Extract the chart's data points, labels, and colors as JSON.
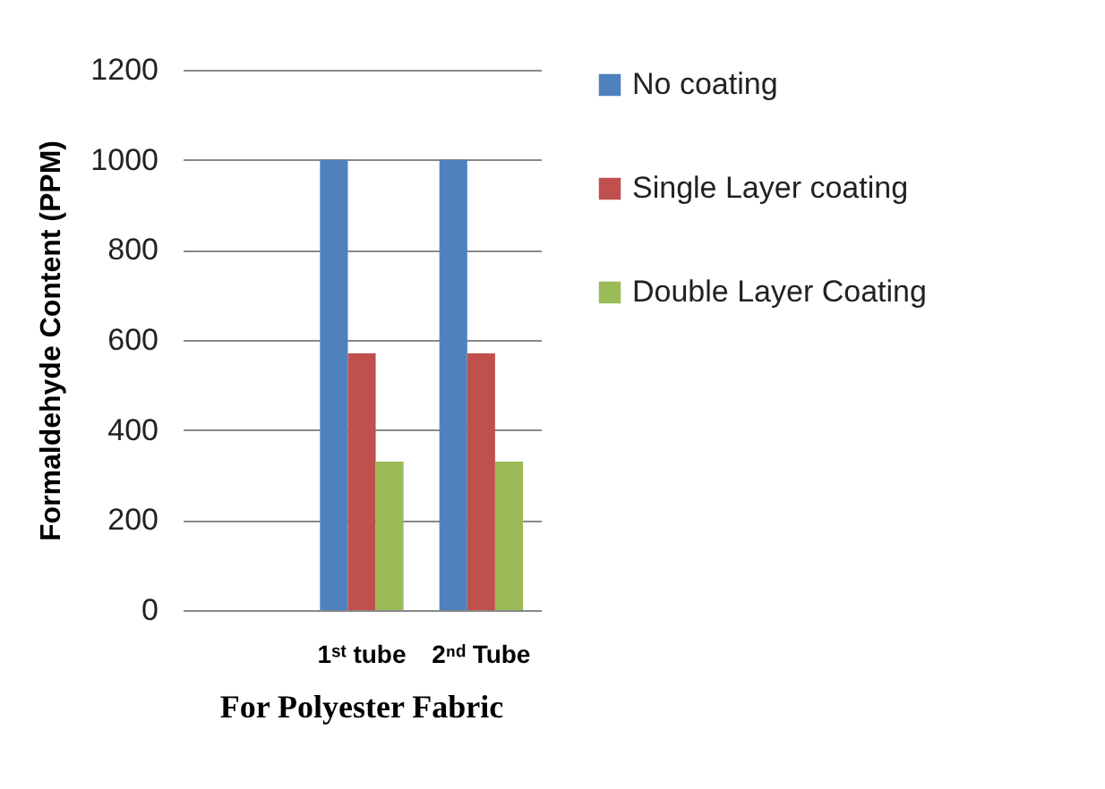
{
  "chart_data": {
    "type": "bar",
    "title": "For Polyester Fabric",
    "ylabel": "Formaldehyde Content (PPM)",
    "categories": [
      null,
      "1ˢᵗ tube",
      "2ⁿᵈ Tube"
    ],
    "series": [
      {
        "name": "No coating",
        "color": "#4f81bd",
        "values": [
          null,
          1000,
          1000
        ]
      },
      {
        "name": "Single Layer coating",
        "color": "#c0504d",
        "values": [
          null,
          570,
          570
        ]
      },
      {
        "name": "Double Layer Coating",
        "color": "#9bbb59",
        "values": [
          null,
          330,
          330
        ]
      }
    ],
    "ylim": [
      0,
      1200
    ],
    "yticks": [
      0,
      200,
      400,
      600,
      800,
      1000,
      1200
    ],
    "grid": "y",
    "legend": "right"
  }
}
